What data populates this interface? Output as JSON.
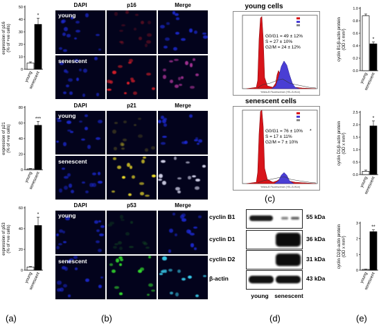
{
  "panel_letters": [
    "(a)",
    "(b)",
    "(c)",
    "(d)",
    "(e)"
  ],
  "microscopy": {
    "col_headers": [
      "DAPI",
      "p16",
      "Merge"
    ],
    "col_headers_p21": [
      "DAPI",
      "p21",
      "Merge"
    ],
    "col_headers_p53": [
      "DAPI",
      "p53",
      "Merge"
    ],
    "row_labels": [
      "young",
      "senescent"
    ],
    "colors": {
      "background": "#03031c",
      "nucleus": "#1d2bd8",
      "red": "#e0202a",
      "yellow": "#f2e12a",
      "green": "#32d82e",
      "cyan": "#38c8e8"
    }
  },
  "flow": {
    "titles": [
      "young cells",
      "senescent cells"
    ],
    "young_stats": [
      "G0/G1 = 49 ± 12%",
      "S = 27 ± 10%",
      "G2/M = 24 ± 12%"
    ],
    "senescent_stats": [
      "G0/G1 = 76 ± 10%",
      "S = 17 ± 11%",
      "G2/M = 7 ± 10%"
    ],
    "senescent_marker": "*",
    "xaxis": "Yellow-B Fluorescence (YEL-B-HLin)"
  },
  "western": {
    "proteins": [
      "cyclin B1",
      "cyclin D1",
      "cyclin D2",
      "β-actin"
    ],
    "kda": [
      "55 kDa",
      "36 kDa",
      "31 kDa",
      "43 kDa"
    ],
    "lanes": [
      "young",
      "senescent"
    ]
  },
  "chart_data": [
    {
      "type": "bar",
      "categories": [
        "young",
        "senescent"
      ],
      "values": [
        5,
        36
      ],
      "errors": [
        1,
        5
      ],
      "ylabel": [
        "expression of p16",
        "(% of +ve cells)"
      ],
      "ylim": [
        0,
        50
      ],
      "yticks": [
        "0",
        "10",
        "20",
        "30",
        "40",
        "50"
      ],
      "significance": "*"
    },
    {
      "type": "bar",
      "categories": [
        "young",
        "senescent"
      ],
      "values": [
        1,
        57
      ],
      "errors": [
        0.5,
        5
      ],
      "ylabel": [
        "expression of p21",
        "(% of +ve cells)"
      ],
      "ylim": [
        0,
        80
      ],
      "yticks": [
        "0",
        "20",
        "40",
        "60",
        "80"
      ],
      "significance": "***"
    },
    {
      "type": "bar",
      "categories": [
        "young",
        "senescent"
      ],
      "values": [
        3,
        43
      ],
      "errors": [
        0.5,
        8
      ],
      "ylabel": [
        "expression of p53",
        "(% of +ve cells)"
      ],
      "ylim": [
        0,
        60
      ],
      "yticks": [
        "0",
        "20",
        "40",
        "60"
      ],
      "significance": "*"
    },
    {
      "type": "bar",
      "categories": [
        "young",
        "senescent"
      ],
      "values": [
        0.88,
        0.43
      ],
      "errors": [
        0.03,
        0.03
      ],
      "ylabel": [
        "cyclin B1/β-actin protein",
        "(OD x mm²)"
      ],
      "ylim": [
        0,
        1.0
      ],
      "yticks": [
        "0.0",
        "0.2",
        "0.4",
        "0.6",
        "0.8",
        "1.0"
      ],
      "significance": "*"
    },
    {
      "type": "bar",
      "categories": [
        "young",
        "senescent"
      ],
      "values": [
        0.13,
        1.95
      ],
      "errors": [
        0.05,
        0.2
      ],
      "ylabel": [
        "cyclin D1/β-actin protein",
        "(OD x mm²)"
      ],
      "ylim": [
        0,
        2.5
      ],
      "yticks": [
        "0.0",
        "0.5",
        "1.0",
        "1.5",
        "2.0",
        "2.5"
      ],
      "significance": "*"
    },
    {
      "type": "bar",
      "categories": [
        "young",
        "senescent"
      ],
      "values": [
        0.05,
        2.45
      ],
      "errors": [
        0.02,
        0.12
      ],
      "ylabel": [
        "cyclin D2/β-actin protein",
        "(OD x mm²)"
      ],
      "ylim": [
        0,
        3
      ],
      "yticks": [
        "0",
        "1",
        "2",
        "3"
      ],
      "significance": "**"
    }
  ]
}
